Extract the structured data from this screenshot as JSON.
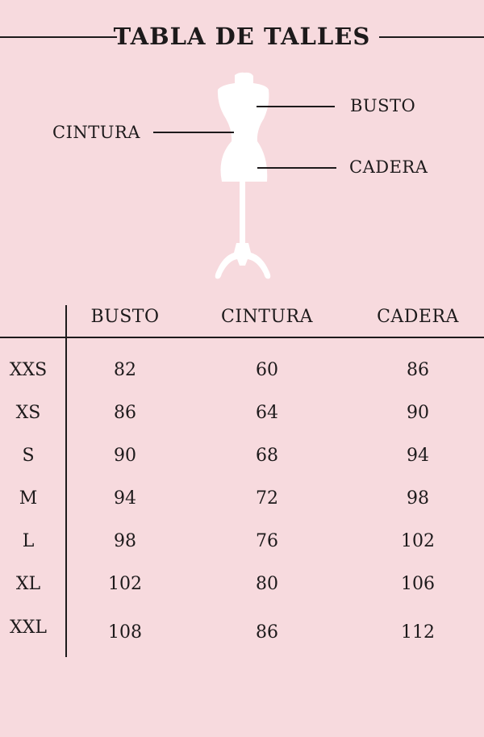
{
  "title": "TABLA DE TALLES",
  "diagram": {
    "labels": {
      "busto": "BUSTO",
      "cintura": "CINTURA",
      "cadera": "CADERA"
    },
    "icon": "dress-form-mannequin-icon"
  },
  "table": {
    "headers": [
      "",
      "BUSTO",
      "CINTURA",
      "CADERA"
    ],
    "rows": [
      [
        "XXS",
        "82",
        "60",
        "86"
      ],
      [
        "XS",
        "86",
        "64",
        "90"
      ],
      [
        "S",
        "90",
        "68",
        "94"
      ],
      [
        "M",
        "94",
        "72",
        "98"
      ],
      [
        "L",
        "98",
        "76",
        "102"
      ],
      [
        "XL",
        "102",
        "80",
        "106"
      ],
      [
        "XXL",
        "108",
        "86",
        "112"
      ]
    ]
  },
  "colors": {
    "background": "#f7dade",
    "text": "#1d1a1b",
    "mannequin": "#ffffff"
  }
}
